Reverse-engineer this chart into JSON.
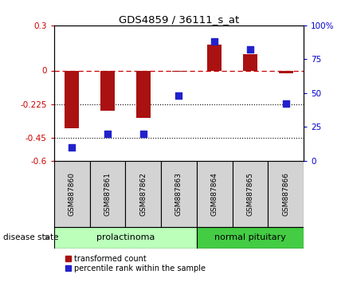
{
  "title": "GDS4859 / 36111_s_at",
  "samples": [
    "GSM887860",
    "GSM887861",
    "GSM887862",
    "GSM887863",
    "GSM887864",
    "GSM887865",
    "GSM887866"
  ],
  "transformed_count": [
    -0.385,
    -0.27,
    -0.315,
    -0.01,
    0.17,
    0.11,
    -0.02
  ],
  "percentile_rank": [
    10,
    20,
    20,
    48,
    88,
    82,
    42
  ],
  "ylim_left": [
    -0.6,
    0.3
  ],
  "ylim_right": [
    0,
    100
  ],
  "yticks_left": [
    0.3,
    0,
    -0.225,
    -0.45,
    -0.6
  ],
  "yticks_right": [
    100,
    75,
    50,
    25,
    0
  ],
  "hlines": [
    -0.225,
    -0.45
  ],
  "bar_color": "#aa1111",
  "dot_color": "#2222cc",
  "prolactinoma_color_light": "#ccffcc",
  "prolactinoma_color_dark": "#44cc44",
  "normal_color": "#44cc44",
  "sample_box_color": "#d3d3d3",
  "legend_items": [
    {
      "label": "transformed count",
      "color": "#aa1111"
    },
    {
      "label": "percentile rank within the sample",
      "color": "#2222cc"
    }
  ],
  "disease_state_label": "disease state",
  "background_color": "#ffffff"
}
